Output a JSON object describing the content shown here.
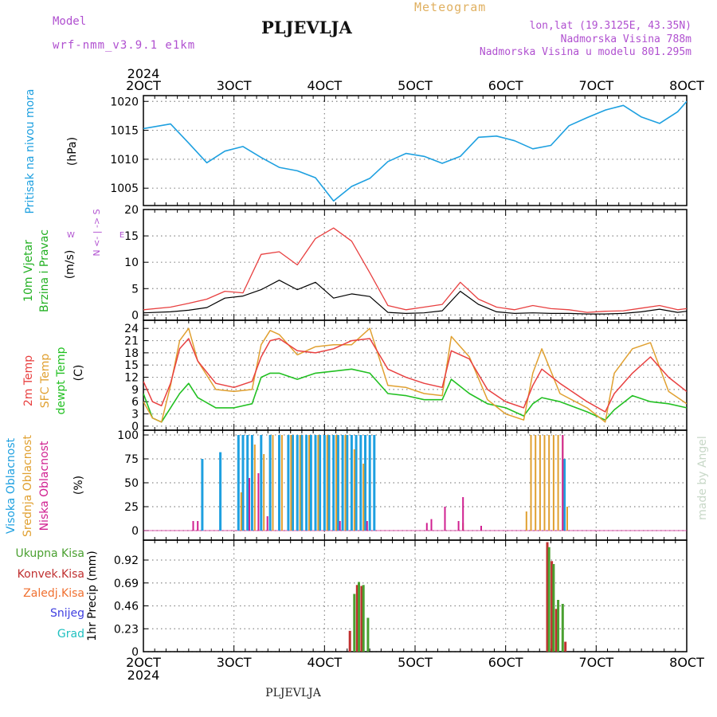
{
  "header": {
    "model_label": "Model",
    "model_name": "wrf-nmm_v3.9.1 e1km",
    "station": "PLJEVLJA",
    "title": "Meteogram",
    "lonlat": "lon,lat (19.3125E, 43.35N)",
    "altitude": "Nadmorska Visina 788m",
    "altitude_model": "Nadmorska Visina u modelu 801.295m",
    "footer_station": "PLJEVLJA",
    "credit": "made by Angel"
  },
  "colors": {
    "pressure": "#1ea0e0",
    "wind_label": "#22b022",
    "temp2m": "#e84040",
    "sfc": "#e0a030",
    "dewpt": "#22c022",
    "high_cloud": "#1ea0e0",
    "mid_cloud": "#e0a030",
    "low_cloud": "#d02090",
    "total_precip": "#4aa030",
    "conv_precip": "#c03030",
    "frozen_precip": "#f07030",
    "snow": "#4040e0",
    "hail": "#20c0c0",
    "header_purple": "#b050d0",
    "title_gold": "#e0b060"
  },
  "chart_data": [
    {
      "panel": "pressure",
      "type": "line",
      "ylabel": [
        "Pritisak na nivou mora",
        "(hPa)"
      ],
      "ylim": [
        1002,
        1021
      ],
      "yticks": [
        1005,
        1010,
        1015,
        1020
      ],
      "grid": true,
      "series": [
        {
          "name": "Pritisak na nivou mora",
          "x": [
            2.0,
            2.3,
            2.5,
            2.7,
            2.9,
            3.1,
            3.3,
            3.5,
            3.7,
            3.9,
            4.1,
            4.3,
            4.5,
            4.7,
            4.9,
            5.1,
            5.3,
            5.5,
            5.7,
            5.9,
            6.1,
            6.3,
            6.5,
            6.7,
            6.9,
            7.1,
            7.3,
            7.5,
            7.7,
            7.9,
            8.0
          ],
          "y": [
            1015.3,
            1016.1,
            1012.8,
            1009.4,
            1011.4,
            1012.2,
            1010.3,
            1008.6,
            1008.0,
            1006.8,
            1002.8,
            1005.3,
            1006.7,
            1009.6,
            1011.0,
            1010.5,
            1009.3,
            1010.5,
            1013.8,
            1014.0,
            1013.2,
            1011.8,
            1012.4,
            1015.8,
            1017.2,
            1018.5,
            1019.3,
            1017.3,
            1016.2,
            1018.2,
            1020.0
          ]
        }
      ]
    },
    {
      "panel": "wind",
      "type": "line",
      "ylabel": [
        "10m Vjetar",
        "Brzina i Pravac",
        "(m/s)"
      ],
      "compass": "N <- | -> S",
      "compass_ends": [
        "W",
        "E"
      ],
      "ylim": [
        -1,
        20
      ],
      "yticks": [
        0,
        5,
        10,
        15,
        20
      ],
      "grid": true,
      "series": [
        {
          "name": "mean",
          "x": [
            2.0,
            2.3,
            2.5,
            2.7,
            2.9,
            3.1,
            3.3,
            3.5,
            3.7,
            3.9,
            4.1,
            4.3,
            4.5,
            4.7,
            4.9,
            5.1,
            5.3,
            5.5,
            5.7,
            5.9,
            6.1,
            6.3,
            6.5,
            6.7,
            6.9,
            7.1,
            7.3,
            7.5,
            7.7,
            7.9,
            8.0
          ],
          "y": [
            0.4,
            0.6,
            0.9,
            1.4,
            3.2,
            3.6,
            4.8,
            6.6,
            4.8,
            6.2,
            3.2,
            4.0,
            3.5,
            0.5,
            0.3,
            0.4,
            0.8,
            4.5,
            2.0,
            0.6,
            0.3,
            0.4,
            0.3,
            0.3,
            0.2,
            0.2,
            0.3,
            0.6,
            1.1,
            0.5,
            0.7
          ]
        },
        {
          "name": "gust",
          "x": [
            2.0,
            2.3,
            2.5,
            2.7,
            2.9,
            3.1,
            3.3,
            3.5,
            3.7,
            3.9,
            4.1,
            4.3,
            4.5,
            4.7,
            4.9,
            5.1,
            5.3,
            5.5,
            5.7,
            5.9,
            6.1,
            6.3,
            6.5,
            6.7,
            6.9,
            7.1,
            7.3,
            7.5,
            7.7,
            7.9,
            8.0
          ],
          "y": [
            1.0,
            1.5,
            2.2,
            3.0,
            4.5,
            4.2,
            11.5,
            12.0,
            9.5,
            14.5,
            16.5,
            14.0,
            8.0,
            1.8,
            1.0,
            1.5,
            2.0,
            6.2,
            3.0,
            1.5,
            1.0,
            1.8,
            1.2,
            1.0,
            0.5,
            0.7,
            0.8,
            1.3,
            1.8,
            1.0,
            1.2
          ]
        }
      ]
    },
    {
      "panel": "temperature",
      "type": "line",
      "ylabel": [
        "2m Temp",
        "SFC Temp",
        "dewpt Temp",
        "(C)"
      ],
      "ylim": [
        -1,
        26
      ],
      "yticks": [
        0,
        3,
        6,
        9,
        12,
        15,
        18,
        21,
        24
      ],
      "grid": true,
      "series": [
        {
          "name": "2m Temp",
          "x": [
            2.0,
            2.1,
            2.2,
            2.3,
            2.4,
            2.5,
            2.6,
            2.8,
            3.0,
            3.2,
            3.3,
            3.4,
            3.5,
            3.7,
            3.9,
            4.1,
            4.3,
            4.5,
            4.7,
            4.9,
            5.1,
            5.3,
            5.4,
            5.6,
            5.8,
            6.0,
            6.2,
            6.3,
            6.4,
            6.6,
            6.9,
            7.1,
            7.2,
            7.4,
            7.6,
            7.8,
            8.0
          ],
          "y": [
            11.0,
            6.0,
            5.0,
            10.5,
            19.0,
            21.5,
            16.0,
            10.5,
            9.5,
            11.0,
            17.0,
            21.0,
            21.5,
            18.5,
            18.0,
            19.0,
            21.0,
            21.5,
            14.0,
            12.0,
            10.5,
            9.5,
            18.5,
            16.5,
            9.0,
            6.0,
            4.5,
            10.0,
            14.0,
            10.5,
            6.0,
            3.5,
            8.0,
            13.0,
            17.0,
            12.0,
            8.5
          ]
        },
        {
          "name": "SFC Temp",
          "x": [
            2.0,
            2.1,
            2.2,
            2.3,
            2.4,
            2.5,
            2.6,
            2.8,
            3.0,
            3.2,
            3.3,
            3.4,
            3.5,
            3.7,
            3.9,
            4.1,
            4.3,
            4.5,
            4.7,
            4.9,
            5.1,
            5.3,
            5.4,
            5.6,
            5.8,
            6.0,
            6.2,
            6.3,
            6.4,
            6.6,
            6.9,
            7.1,
            7.2,
            7.4,
            7.6,
            7.8,
            8.0
          ],
          "y": [
            6.0,
            2.0,
            1.0,
            10.0,
            21.0,
            24.0,
            16.0,
            9.0,
            8.5,
            9.0,
            20.0,
            23.5,
            22.5,
            17.5,
            19.5,
            20.0,
            20.0,
            24.0,
            10.0,
            9.5,
            8.0,
            7.5,
            22.0,
            17.0,
            6.5,
            3.0,
            1.5,
            13.0,
            19.0,
            8.0,
            4.5,
            1.0,
            13.0,
            19.0,
            20.5,
            8.5,
            5.5
          ]
        },
        {
          "name": "dewpt Temp",
          "x": [
            2.0,
            2.1,
            2.2,
            2.3,
            2.4,
            2.5,
            2.6,
            2.8,
            3.0,
            3.2,
            3.3,
            3.4,
            3.5,
            3.7,
            3.9,
            4.1,
            4.3,
            4.5,
            4.7,
            4.9,
            5.1,
            5.3,
            5.4,
            5.6,
            5.8,
            6.0,
            6.2,
            6.3,
            6.4,
            6.6,
            6.9,
            7.1,
            7.2,
            7.4,
            7.6,
            7.8,
            8.0
          ],
          "y": [
            8.0,
            2.0,
            1.0,
            4.5,
            8.0,
            10.5,
            7.0,
            4.5,
            4.5,
            5.5,
            12.0,
            13.0,
            13.0,
            11.5,
            13.0,
            13.5,
            14.0,
            13.0,
            8.0,
            7.5,
            6.5,
            6.5,
            11.5,
            8.0,
            5.5,
            4.5,
            2.5,
            5.5,
            7.0,
            6.0,
            3.5,
            1.5,
            4.0,
            7.5,
            6.0,
            5.5,
            4.5
          ]
        }
      ]
    },
    {
      "panel": "clouds",
      "type": "bar",
      "ylabel": [
        "Visoka Oblacnost",
        "Srednja Oblacnost",
        "Niska Oblacnost",
        "(%)"
      ],
      "ylim": [
        -10,
        105
      ],
      "yticks": [
        0,
        25,
        50,
        75,
        100
      ],
      "grid": true,
      "series": [
        {
          "name": "Visoka Oblacnost",
          "x": [
            2.65,
            2.85,
            3.05,
            3.1,
            3.15,
            3.2,
            3.3,
            3.4,
            3.5,
            3.6,
            3.65,
            3.7,
            3.75,
            3.8,
            3.85,
            3.9,
            3.95,
            4.0,
            4.05,
            4.1,
            4.15,
            4.2,
            4.25,
            4.3,
            4.35,
            4.4,
            4.45,
            4.5,
            4.55,
            6.65
          ],
          "y": [
            75,
            82,
            100,
            100,
            100,
            100,
            100,
            100,
            100,
            100,
            100,
            100,
            100,
            100,
            100,
            100,
            100,
            100,
            100,
            100,
            100,
            100,
            100,
            100,
            100,
            100,
            100,
            100,
            100,
            75
          ]
        },
        {
          "name": "Srednja Oblacnost",
          "x": [
            3.08,
            3.23,
            3.33,
            3.43,
            3.53,
            3.63,
            3.73,
            3.83,
            3.93,
            4.03,
            4.13,
            4.23,
            4.33,
            4.43,
            5.53,
            6.23,
            6.28,
            6.33,
            6.38,
            6.43,
            6.48,
            6.53,
            6.58,
            6.63,
            6.68
          ],
          "y": [
            40,
            90,
            80,
            100,
            100,
            100,
            100,
            100,
            100,
            100,
            100,
            100,
            85,
            70,
            8,
            20,
            100,
            100,
            100,
            100,
            100,
            100,
            100,
            100,
            25
          ]
        },
        {
          "name": "Niska Oblacnost",
          "x": [
            2.55,
            2.6,
            3.17,
            3.27,
            3.37,
            4.17,
            4.47,
            5.13,
            5.18,
            5.33,
            5.48,
            5.53,
            5.73,
            6.63
          ],
          "y": [
            10,
            10,
            55,
            60,
            15,
            10,
            10,
            8,
            12,
            25,
            10,
            35,
            5,
            100
          ]
        }
      ]
    },
    {
      "panel": "precip",
      "type": "bar",
      "ylabel": [
        "1hr Precip (mm)"
      ],
      "legend": [
        "Ukupna Kisa",
        "Konvek.Kisa",
        "Zaledj.Kisa",
        "Snijeg",
        "Grad"
      ],
      "ylim": [
        0,
        1.12
      ],
      "yticks": [
        0,
        0.23,
        0.46,
        0.69,
        0.92
      ],
      "grid": true,
      "series": [
        {
          "name": "Ukupna Kisa",
          "x": [
            4.33,
            4.38,
            4.43,
            4.48,
            6.48,
            6.53,
            6.58,
            6.63
          ],
          "y": [
            0.58,
            0.7,
            0.67,
            0.34,
            1.05,
            0.88,
            0.52,
            0.48
          ]
        },
        {
          "name": "Konvek.Kisa",
          "x": [
            4.28,
            4.36,
            4.41,
            4.46,
            6.46,
            6.51,
            6.56,
            6.66
          ],
          "y": [
            0.21,
            0.67,
            0.66,
            0.0,
            1.1,
            0.91,
            0.43,
            0.1
          ]
        }
      ],
      "xlabel_ticks": [
        "2OCT",
        "3OCT",
        "4OCT",
        "5OCT",
        "6OCT",
        "7OCT",
        "8OCT"
      ],
      "xlabel_year": "2024"
    }
  ]
}
